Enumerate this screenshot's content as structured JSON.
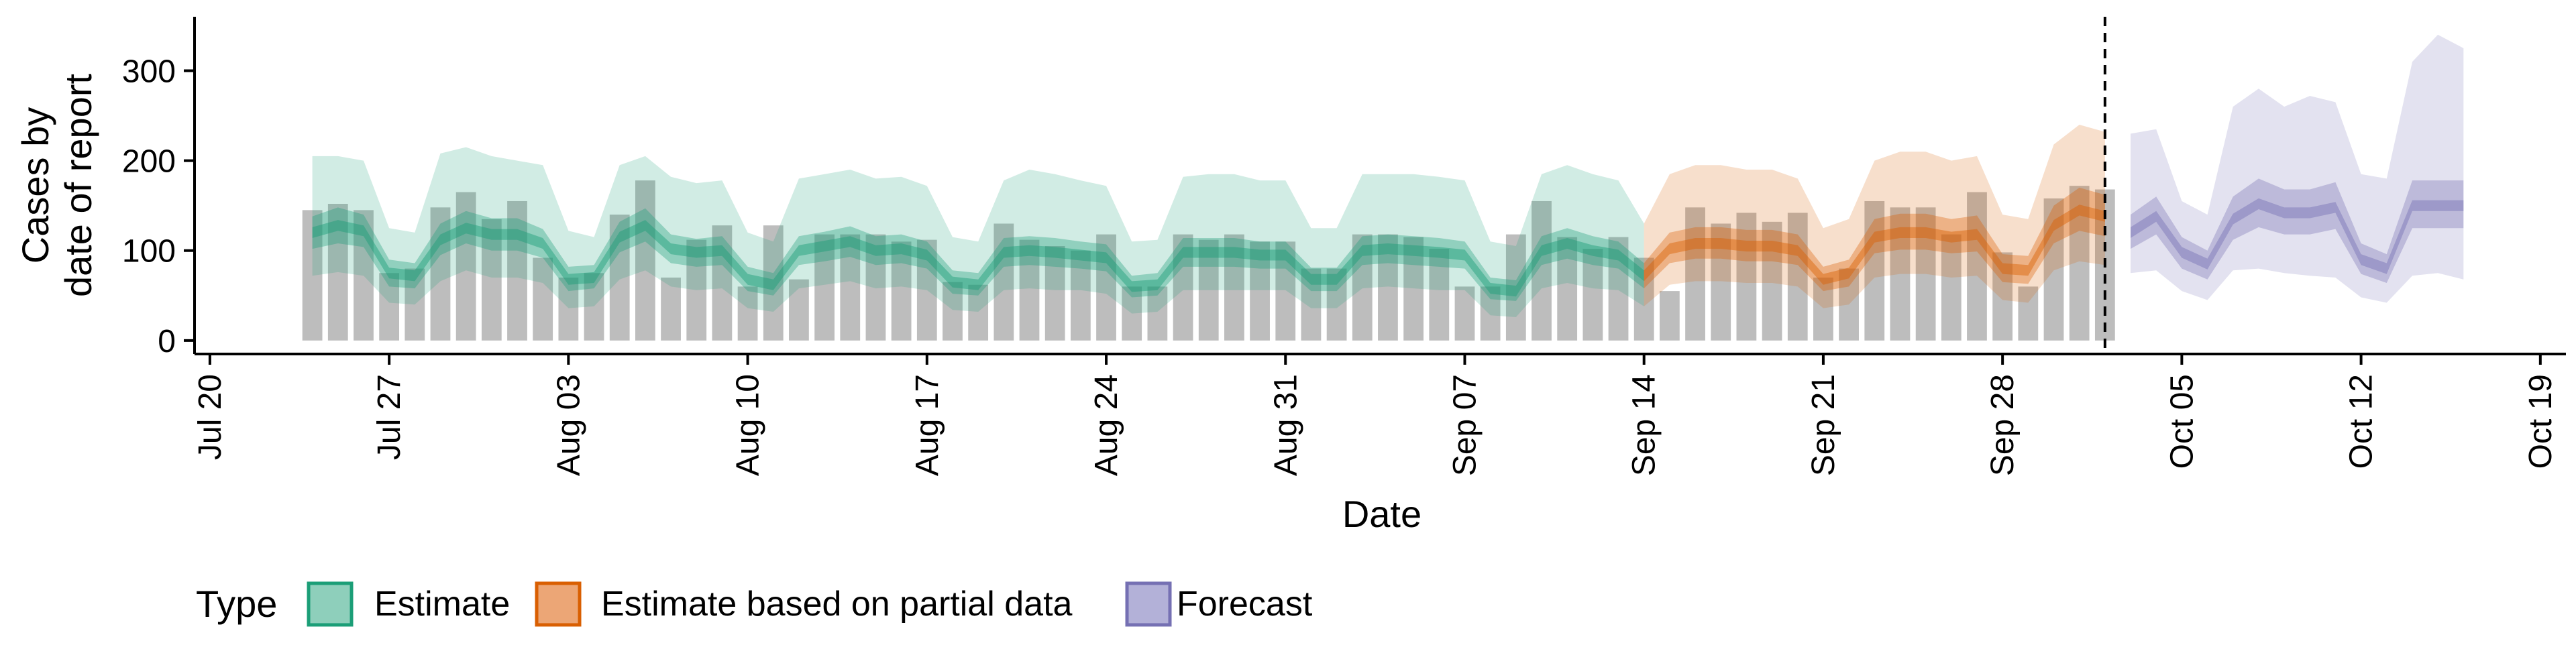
{
  "chart_data": {
    "type": "area",
    "title": "",
    "xlabel": "Date",
    "ylabel_lines": [
      "Cases by",
      "date of report"
    ],
    "x_start_date": "2020-07-20",
    "xlim": [
      "2020-07-20",
      "2020-10-20"
    ],
    "ylim": [
      -15,
      360
    ],
    "x_ticks": [
      "Jul 20",
      "Jul 27",
      "Aug 03",
      "Aug 10",
      "Aug 17",
      "Aug 24",
      "Aug 31",
      "Sep 07",
      "Sep 14",
      "Sep 21",
      "Sep 28",
      "Oct 05",
      "Oct 12",
      "Oct 19"
    ],
    "x_tick_dates": [
      "2020-07-20",
      "2020-07-27",
      "2020-08-03",
      "2020-08-10",
      "2020-08-17",
      "2020-08-24",
      "2020-08-31",
      "2020-09-07",
      "2020-09-14",
      "2020-09-21",
      "2020-09-28",
      "2020-10-05",
      "2020-10-12",
      "2020-10-19"
    ],
    "y_ticks": [
      0,
      100,
      200,
      300
    ],
    "vline_date": "2020-10-02",
    "reported_cases": {
      "dates": [
        "2020-07-24",
        "2020-07-25",
        "2020-07-26",
        "2020-07-27",
        "2020-07-28",
        "2020-07-29",
        "2020-07-30",
        "2020-07-31",
        "2020-08-01",
        "2020-08-02",
        "2020-08-03",
        "2020-08-04",
        "2020-08-05",
        "2020-08-06",
        "2020-08-07",
        "2020-08-08",
        "2020-08-09",
        "2020-08-10",
        "2020-08-11",
        "2020-08-12",
        "2020-08-13",
        "2020-08-14",
        "2020-08-15",
        "2020-08-16",
        "2020-08-17",
        "2020-08-18",
        "2020-08-19",
        "2020-08-20",
        "2020-08-21",
        "2020-08-22",
        "2020-08-23",
        "2020-08-24",
        "2020-08-25",
        "2020-08-26",
        "2020-08-27",
        "2020-08-28",
        "2020-08-29",
        "2020-08-30",
        "2020-08-31",
        "2020-09-01",
        "2020-09-02",
        "2020-09-03",
        "2020-09-04",
        "2020-09-05",
        "2020-09-06",
        "2020-09-07",
        "2020-09-08",
        "2020-09-09",
        "2020-09-10",
        "2020-09-11",
        "2020-09-12",
        "2020-09-13",
        "2020-09-14",
        "2020-09-15",
        "2020-09-16",
        "2020-09-17",
        "2020-09-18",
        "2020-09-19",
        "2020-09-20",
        "2020-09-21",
        "2020-09-22",
        "2020-09-23",
        "2020-09-24",
        "2020-09-25",
        "2020-09-26",
        "2020-09-27",
        "2020-09-28",
        "2020-09-29",
        "2020-09-30",
        "2020-10-01",
        "2020-10-02"
      ],
      "values": [
        145,
        152,
        145,
        75,
        80,
        148,
        165,
        135,
        155,
        92,
        70,
        75,
        140,
        178,
        70,
        112,
        128,
        60,
        128,
        68,
        118,
        118,
        118,
        110,
        112,
        65,
        62,
        130,
        112,
        105,
        100,
        118,
        60,
        60,
        118,
        112,
        118,
        110,
        110,
        80,
        80,
        118,
        118,
        115,
        102,
        60,
        60,
        118,
        155,
        115,
        102,
        115,
        92,
        55,
        148,
        130,
        142,
        132,
        142,
        70,
        80,
        155,
        148,
        148,
        118,
        165,
        98,
        60,
        158,
        172,
        168
      ]
    },
    "series": [
      {
        "name": "Estimate",
        "color": "#1b9e77",
        "dates": [
          "2020-07-24",
          "2020-07-25",
          "2020-07-26",
          "2020-07-27",
          "2020-07-28",
          "2020-07-29",
          "2020-07-30",
          "2020-07-31",
          "2020-08-01",
          "2020-08-02",
          "2020-08-03",
          "2020-08-04",
          "2020-08-05",
          "2020-08-06",
          "2020-08-07",
          "2020-08-08",
          "2020-08-09",
          "2020-08-10",
          "2020-08-11",
          "2020-08-12",
          "2020-08-13",
          "2020-08-14",
          "2020-08-15",
          "2020-08-16",
          "2020-08-17",
          "2020-08-18",
          "2020-08-19",
          "2020-08-20",
          "2020-08-21",
          "2020-08-22",
          "2020-08-23",
          "2020-08-24",
          "2020-08-25",
          "2020-08-26",
          "2020-08-27",
          "2020-08-28",
          "2020-08-29",
          "2020-08-30",
          "2020-08-31",
          "2020-09-01",
          "2020-09-02",
          "2020-09-03",
          "2020-09-04",
          "2020-09-05",
          "2020-09-06",
          "2020-09-07",
          "2020-09-08",
          "2020-09-09",
          "2020-09-10",
          "2020-09-11",
          "2020-09-12",
          "2020-09-13",
          "2020-09-14"
        ],
        "median": [
          120,
          128,
          122,
          75,
          72,
          112,
          125,
          118,
          118,
          108,
          68,
          70,
          115,
          128,
          102,
          98,
          100,
          68,
          62,
          100,
          105,
          110,
          100,
          102,
          95,
          65,
          62,
          98,
          100,
          98,
          95,
          92,
          60,
          62,
          98,
          98,
          98,
          95,
          95,
          68,
          68,
          100,
          102,
          100,
          98,
          95,
          58,
          55,
          100,
          108,
          100,
          95,
          72
        ],
        "lower50": [
          102,
          108,
          104,
          60,
          58,
          95,
          108,
          100,
          100,
          92,
          55,
          58,
          98,
          110,
          86,
          82,
          84,
          55,
          50,
          84,
          88,
          93,
          84,
          86,
          80,
          52,
          50,
          82,
          84,
          82,
          80,
          77,
          48,
          50,
          82,
          82,
          82,
          80,
          80,
          55,
          55,
          84,
          86,
          84,
          82,
          80,
          46,
          44,
          84,
          91,
          84,
          80,
          58
        ],
        "upper50": [
          138,
          148,
          140,
          90,
          86,
          130,
          144,
          136,
          136,
          124,
          82,
          84,
          132,
          147,
          118,
          113,
          116,
          82,
          75,
          116,
          121,
          127,
          116,
          118,
          110,
          78,
          75,
          114,
          116,
          114,
          110,
          107,
          72,
          75,
          114,
          114,
          114,
          110,
          110,
          81,
          81,
          116,
          118,
          116,
          114,
          110,
          70,
          67,
          116,
          125,
          116,
          110,
          86
        ],
        "lower90": [
          72,
          76,
          72,
          42,
          40,
          66,
          78,
          70,
          70,
          64,
          36,
          38,
          68,
          78,
          60,
          56,
          58,
          36,
          32,
          58,
          62,
          66,
          58,
          60,
          56,
          34,
          32,
          56,
          58,
          56,
          56,
          52,
          30,
          32,
          56,
          56,
          56,
          56,
          56,
          36,
          36,
          58,
          60,
          58,
          56,
          56,
          28,
          26,
          58,
          64,
          58,
          56,
          38
        ],
        "upper90": [
          205,
          205,
          200,
          125,
          120,
          208,
          215,
          205,
          200,
          195,
          122,
          115,
          195,
          205,
          182,
          175,
          178,
          120,
          110,
          180,
          185,
          190,
          180,
          182,
          172,
          115,
          110,
          178,
          190,
          185,
          178,
          172,
          110,
          112,
          182,
          185,
          185,
          178,
          178,
          125,
          125,
          185,
          185,
          185,
          182,
          178,
          110,
          105,
          185,
          195,
          185,
          178,
          130
        ]
      },
      {
        "name": "Estimate based on partial data",
        "color": "#d95f02",
        "dates": [
          "2020-09-14",
          "2020-09-15",
          "2020-09-16",
          "2020-09-17",
          "2020-09-18",
          "2020-09-19",
          "2020-09-20",
          "2020-09-21",
          "2020-09-22",
          "2020-09-23",
          "2020-09-24",
          "2020-09-25",
          "2020-09-26",
          "2020-09-27",
          "2020-09-28",
          "2020-09-29",
          "2020-09-30",
          "2020-10-01",
          "2020-10-02"
        ],
        "median": [
          72,
          102,
          108,
          108,
          105,
          105,
          100,
          68,
          75,
          115,
          120,
          120,
          115,
          118,
          80,
          78,
          128,
          145,
          138
        ],
        "lower50": [
          58,
          86,
          91,
          91,
          88,
          88,
          84,
          55,
          60,
          97,
          101,
          101,
          97,
          99,
          65,
          63,
          108,
          122,
          116
        ],
        "upper50": [
          86,
          120,
          126,
          126,
          123,
          123,
          118,
          82,
          90,
          135,
          141,
          141,
          135,
          139,
          96,
          94,
          150,
          170,
          162
        ],
        "lower90": [
          38,
          62,
          66,
          66,
          64,
          64,
          60,
          36,
          40,
          70,
          74,
          74,
          70,
          72,
          45,
          42,
          78,
          88,
          84
        ],
        "upper90": [
          130,
          185,
          195,
          195,
          190,
          190,
          180,
          125,
          135,
          200,
          210,
          210,
          200,
          205,
          140,
          135,
          218,
          240,
          232
        ]
      },
      {
        "name": "Forecast",
        "color": "#7570b3",
        "dates": [
          "2020-10-03",
          "2020-10-04",
          "2020-10-05",
          "2020-10-06",
          "2020-10-07",
          "2020-10-08",
          "2020-10-09",
          "2020-10-10",
          "2020-10-11",
          "2020-10-12",
          "2020-10-13",
          "2020-10-14",
          "2020-10-15",
          "2020-10-16"
        ],
        "median": [
          120,
          138,
          98,
          85,
          135,
          152,
          142,
          142,
          148,
          90,
          80,
          150,
          150,
          150
        ],
        "lower50": [
          102,
          118,
          80,
          68,
          112,
          126,
          118,
          118,
          124,
          74,
          64,
          125,
          125,
          125
        ],
        "upper50": [
          140,
          160,
          115,
          100,
          160,
          180,
          168,
          168,
          176,
          108,
          96,
          178,
          178,
          178
        ],
        "lower90": [
          75,
          78,
          55,
          45,
          78,
          80,
          75,
          72,
          70,
          48,
          42,
          72,
          75,
          68
        ],
        "upper90": [
          230,
          235,
          155,
          140,
          260,
          280,
          260,
          272,
          265,
          185,
          180,
          310,
          340,
          325
        ]
      }
    ],
    "legend": {
      "title": "Type",
      "position": "bottom",
      "items": [
        {
          "label": "Estimate",
          "color": "#1b9e77"
        },
        {
          "label": "Estimate based on partial data",
          "color": "#d95f02"
        },
        {
          "label": "Forecast",
          "color": "#7570b3"
        }
      ]
    }
  }
}
